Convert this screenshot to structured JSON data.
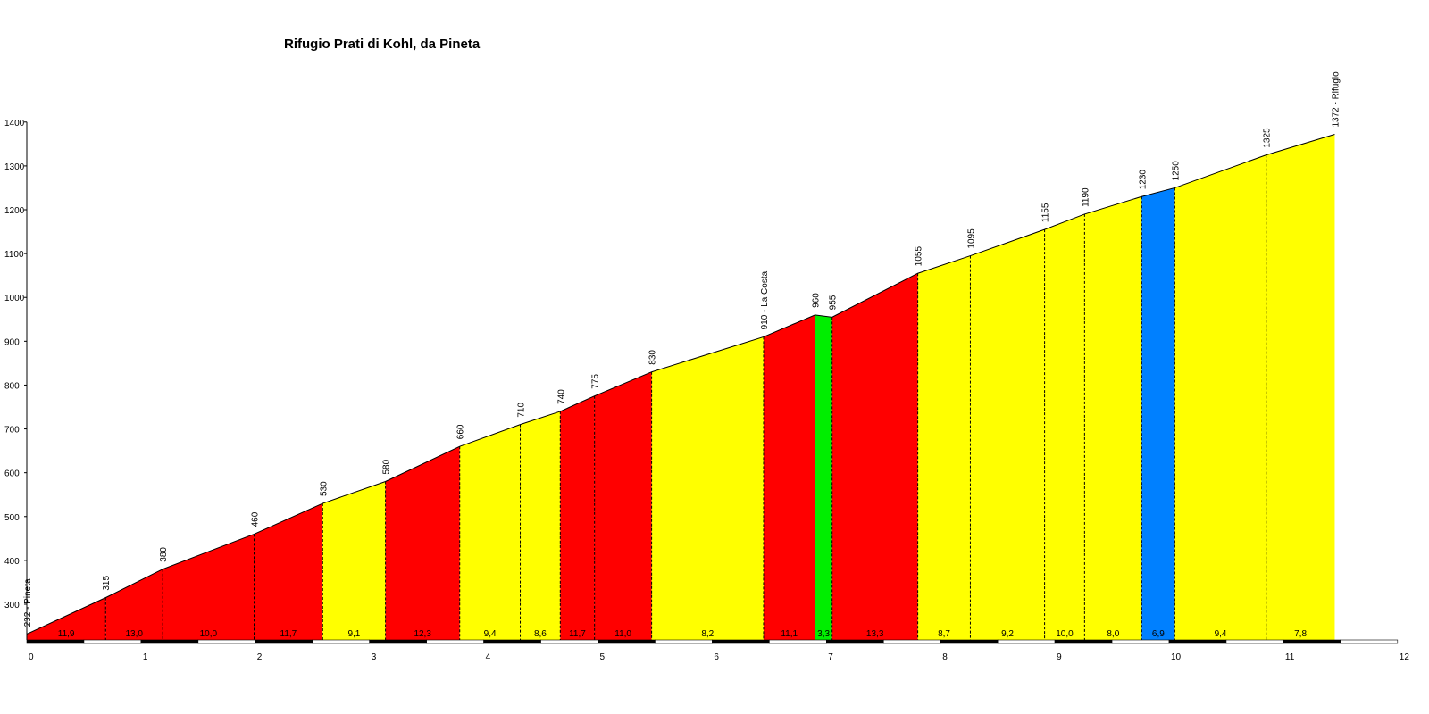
{
  "chart_data": {
    "type": "area",
    "title": "Rifugio Prati di Kohl, da Pineta",
    "xlim": [
      0,
      12
    ],
    "ylim": [
      210,
      1400
    ],
    "y_ticks": [
      300,
      400,
      500,
      600,
      700,
      800,
      900,
      1000,
      1100,
      1200,
      1300,
      1400
    ],
    "x_ticks": [
      0,
      1,
      2,
      3,
      4,
      5,
      6,
      7,
      8,
      9,
      10,
      11,
      12
    ],
    "x_tick_labels": [
      "0",
      "1",
      "2",
      "3",
      "4",
      "5",
      "6",
      "7",
      "8",
      "9",
      "10",
      "11",
      "12"
    ],
    "grid": false,
    "points": [
      {
        "x": 0.0,
        "y": 232,
        "label": "232 - Pineta"
      },
      {
        "x": 0.69,
        "y": 315,
        "label": "315"
      },
      {
        "x": 1.19,
        "y": 380,
        "label": "380"
      },
      {
        "x": 1.99,
        "y": 460,
        "label": "460"
      },
      {
        "x": 2.59,
        "y": 530,
        "label": "530"
      },
      {
        "x": 3.14,
        "y": 580,
        "label": "580"
      },
      {
        "x": 3.79,
        "y": 660,
        "label": "660"
      },
      {
        "x": 4.32,
        "y": 710,
        "label": "710"
      },
      {
        "x": 4.67,
        "y": 740,
        "label": "740"
      },
      {
        "x": 4.97,
        "y": 775,
        "label": "775"
      },
      {
        "x": 5.47,
        "y": 830,
        "label": "830"
      },
      {
        "x": 6.45,
        "y": 910,
        "label": "910 - La Costa"
      },
      {
        "x": 6.9,
        "y": 960,
        "label": "960"
      },
      {
        "x": 7.05,
        "y": 955,
        "label": "955"
      },
      {
        "x": 7.8,
        "y": 1055,
        "label": "1055"
      },
      {
        "x": 8.26,
        "y": 1095,
        "label": "1095"
      },
      {
        "x": 8.91,
        "y": 1155,
        "label": "1155"
      },
      {
        "x": 9.26,
        "y": 1190,
        "label": "1190"
      },
      {
        "x": 9.76,
        "y": 1230,
        "label": "1230"
      },
      {
        "x": 10.05,
        "y": 1250,
        "label": "1250"
      },
      {
        "x": 10.85,
        "y": 1325,
        "label": "1325"
      },
      {
        "x": 11.45,
        "y": 1372,
        "label": "1372 - Rifugio"
      }
    ],
    "segments": [
      {
        "grade": "11,9",
        "color": "#ff0000"
      },
      {
        "grade": "13,0",
        "color": "#ff0000"
      },
      {
        "grade": "10,0",
        "color": "#ff0000"
      },
      {
        "grade": "11,7",
        "color": "#ff0000"
      },
      {
        "grade": "9,1",
        "color": "#ffff00"
      },
      {
        "grade": "12,3",
        "color": "#ff0000"
      },
      {
        "grade": "9,4",
        "color": "#ffff00"
      },
      {
        "grade": "8,6",
        "color": "#ffff00"
      },
      {
        "grade": "11,7",
        "color": "#ff0000"
      },
      {
        "grade": "11,0",
        "color": "#ff0000"
      },
      {
        "grade": "8,2",
        "color": "#ffff00"
      },
      {
        "grade": "11,1",
        "color": "#ff0000"
      },
      {
        "grade": "3,3",
        "color": "#00ee00"
      },
      {
        "grade": "13,3",
        "color": "#ff0000"
      },
      {
        "grade": "8,7",
        "color": "#ffff00"
      },
      {
        "grade": "9,2",
        "color": "#ffff00"
      },
      {
        "grade": "10,0",
        "color": "#ffff00"
      },
      {
        "grade": "8,0",
        "color": "#ffff00"
      },
      {
        "grade": "6,9",
        "color": "#0080ff"
      },
      {
        "grade": "9,4",
        "color": "#ffff00"
      },
      {
        "grade": "7,8",
        "color": "#ffff00"
      }
    ]
  }
}
